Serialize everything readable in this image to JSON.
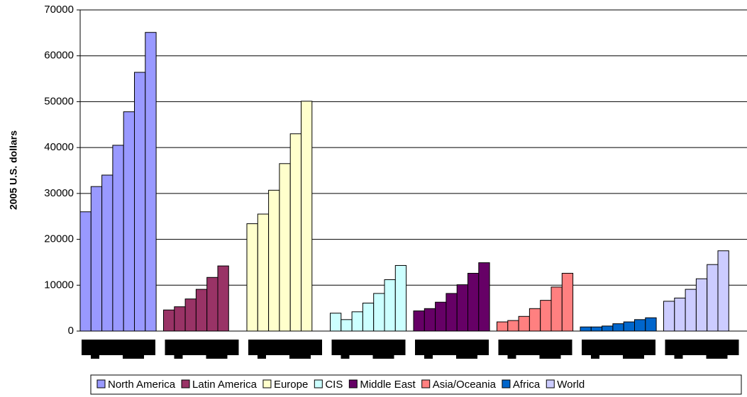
{
  "chart_data": {
    "type": "grouped_bar",
    "y_label": "2005 U.S. dollars",
    "ylim": [
      0,
      70000
    ],
    "yticks": [
      0,
      10000,
      20000,
      30000,
      40000,
      50000,
      60000,
      70000
    ],
    "grid": true,
    "series": [
      {
        "name": "North America",
        "color": "#9999ff",
        "values": [
          26000,
          31500,
          34000,
          40500,
          47800,
          56400,
          65100
        ]
      },
      {
        "name": "Latin America",
        "color": "#993366",
        "values": [
          4600,
          5300,
          7000,
          9100,
          11700,
          14200,
          null
        ]
      },
      {
        "name": "Europe",
        "color": "#ffffcc",
        "values": [
          23400,
          25500,
          30700,
          36500,
          43000,
          50100,
          null
        ]
      },
      {
        "name": "CIS",
        "color": "#ccffff",
        "values": [
          3900,
          2500,
          4200,
          6100,
          8200,
          11200,
          14300
        ]
      },
      {
        "name": "Middle East",
        "color": "#660066",
        "values": [
          4400,
          4900,
          6300,
          8200,
          10100,
          12600,
          14900
        ]
      },
      {
        "name": "Asia/Oceania",
        "color": "#ff8080",
        "values": [
          2000,
          2300,
          3200,
          4900,
          6700,
          9600,
          12600
        ]
      },
      {
        "name": "Africa",
        "color": "#0066cc",
        "values": [
          900,
          900,
          1100,
          1600,
          2000,
          2500,
          2900
        ]
      },
      {
        "name": "World",
        "color": "#ccccff",
        "values": [
          6500,
          7200,
          9100,
          11400,
          14500,
          17500,
          null
        ]
      }
    ]
  }
}
